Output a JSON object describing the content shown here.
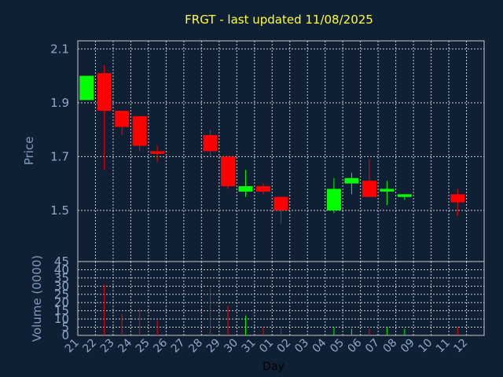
{
  "chart_data": [
    {
      "type": "candlestick",
      "title": "FRGT - last updated 11/08/2025",
      "ylabel": "Price",
      "xlabel": "",
      "ylim": [
        1.31,
        2.13
      ],
      "yticks": [
        1.5,
        1.7,
        1.9,
        2.1
      ],
      "ytick_labels": [
        "1.5",
        "1.7",
        "1.9",
        "2.1"
      ],
      "grid": true,
      "up_color": "#00ff00",
      "down_color": "#ff0000",
      "categories": [
        "21",
        "22",
        "23",
        "24",
        "25",
        "26",
        "27",
        "28",
        "29",
        "30",
        "31",
        "01",
        "02",
        "03",
        "04",
        "05",
        "06",
        "07",
        "08",
        "09",
        "10",
        "11",
        "12"
      ],
      "candles": [
        {
          "x": "21",
          "open": 1.91,
          "high": 2.0,
          "low": 1.91,
          "close": 2.0
        },
        {
          "x": "22",
          "open": 2.01,
          "high": 2.04,
          "low": 1.65,
          "close": 1.87
        },
        {
          "x": "23",
          "open": 1.87,
          "high": 1.87,
          "low": 1.78,
          "close": 1.81
        },
        {
          "x": "24",
          "open": 1.85,
          "high": 1.85,
          "low": 1.72,
          "close": 1.74
        },
        {
          "x": "25",
          "open": 1.72,
          "high": 1.74,
          "low": 1.68,
          "close": 1.71
        },
        {
          "x": "28",
          "open": 1.78,
          "high": 1.8,
          "low": 1.7,
          "close": 1.72
        },
        {
          "x": "29",
          "open": 1.7,
          "high": 1.7,
          "low": 1.58,
          "close": 1.59
        },
        {
          "x": "30",
          "open": 1.57,
          "high": 1.65,
          "low": 1.55,
          "close": 1.59
        },
        {
          "x": "31",
          "open": 1.59,
          "high": 1.6,
          "low": 1.56,
          "close": 1.57
        },
        {
          "x": "01",
          "open": 1.55,
          "high": 1.55,
          "low": 1.45,
          "close": 1.5
        },
        {
          "x": "04",
          "open": 1.5,
          "high": 1.62,
          "low": 1.49,
          "close": 1.58
        },
        {
          "x": "05",
          "open": 1.6,
          "high": 1.64,
          "low": 1.56,
          "close": 1.62
        },
        {
          "x": "06",
          "open": 1.61,
          "high": 1.69,
          "low": 1.55,
          "close": 1.55
        },
        {
          "x": "07",
          "open": 1.57,
          "high": 1.61,
          "low": 1.52,
          "close": 1.58
        },
        {
          "x": "08",
          "open": 1.55,
          "high": 1.56,
          "low": 1.54,
          "close": 1.56
        },
        {
          "x": "11",
          "open": 1.56,
          "high": 1.58,
          "low": 1.48,
          "close": 1.53
        }
      ]
    },
    {
      "type": "bar",
      "ylabel": "Volume (0000)",
      "xlabel": "Day",
      "ylim": [
        0,
        45
      ],
      "yticks": [
        0,
        5,
        10,
        15,
        20,
        25,
        30,
        35,
        40,
        45
      ],
      "ytick_labels": [
        "0",
        "5",
        "10",
        "15",
        "20",
        "25",
        "30",
        "35",
        "40",
        "45"
      ],
      "grid": true,
      "categories": [
        "21",
        "22",
        "23",
        "24",
        "25",
        "26",
        "27",
        "28",
        "29",
        "30",
        "31",
        "01",
        "02",
        "03",
        "04",
        "05",
        "06",
        "07",
        "08",
        "09",
        "10",
        "11",
        "12"
      ],
      "bars": [
        {
          "x": "21",
          "value": 0,
          "dir": "up"
        },
        {
          "x": "22",
          "value": 31,
          "dir": "down"
        },
        {
          "x": "23",
          "value": 13,
          "dir": "down"
        },
        {
          "x": "24",
          "value": 16,
          "dir": "down"
        },
        {
          "x": "25",
          "value": 9,
          "dir": "down"
        },
        {
          "x": "28",
          "value": 29,
          "dir": "down"
        },
        {
          "x": "29",
          "value": 18,
          "dir": "down"
        },
        {
          "x": "30",
          "value": 12,
          "dir": "up"
        },
        {
          "x": "31",
          "value": 5,
          "dir": "down"
        },
        {
          "x": "01",
          "value": 5,
          "dir": "down"
        },
        {
          "x": "04",
          "value": 5,
          "dir": "up"
        },
        {
          "x": "05",
          "value": 4,
          "dir": "up"
        },
        {
          "x": "06",
          "value": 4,
          "dir": "down"
        },
        {
          "x": "07",
          "value": 5,
          "dir": "up"
        },
        {
          "x": "08",
          "value": 4,
          "dir": "up"
        },
        {
          "x": "11",
          "value": 5,
          "dir": "down"
        }
      ]
    }
  ]
}
